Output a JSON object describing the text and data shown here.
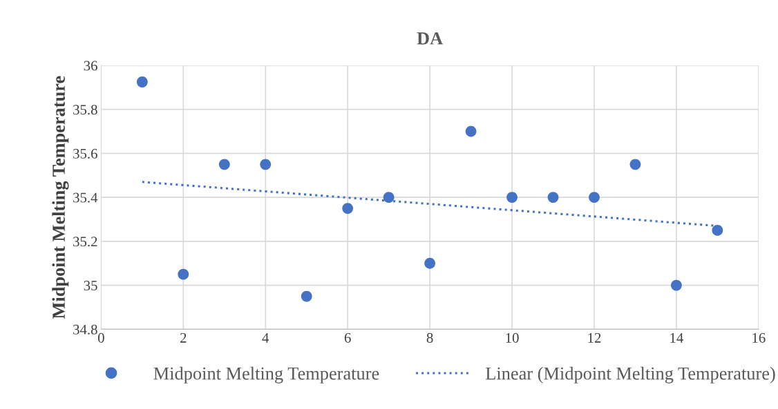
{
  "chart_data": {
    "type": "scatter",
    "title": "DA",
    "ylabel": "Midpoint Melting Temperature",
    "x": [
      1,
      2,
      3,
      4,
      5,
      6,
      7,
      8,
      9,
      10,
      11,
      12,
      13,
      14,
      15
    ],
    "series": [
      {
        "name": "Midpoint Melting Temperature",
        "color": "#4472c4",
        "marker": "circle",
        "values": [
          35.925,
          35.05,
          35.55,
          35.55,
          34.95,
          35.35,
          35.4,
          35.1,
          35.7,
          35.4,
          35.4,
          35.4,
          35.55,
          35.0,
          35.25
        ]
      },
      {
        "name": "Linear (Midpoint Melting Temperature)",
        "type": "line",
        "line_style": "dotted",
        "color": "#4472c4",
        "x": [
          1,
          15
        ],
        "values": [
          35.47,
          35.27
        ]
      }
    ],
    "xlim": [
      0,
      16
    ],
    "xticks": [
      0,
      2,
      4,
      6,
      8,
      10,
      12,
      14,
      16
    ],
    "ylim": [
      34.8,
      36
    ],
    "yticks": [
      34.8,
      35,
      35.2,
      35.4,
      35.6,
      35.8,
      36
    ],
    "grid": true,
    "legend": "bottom"
  }
}
